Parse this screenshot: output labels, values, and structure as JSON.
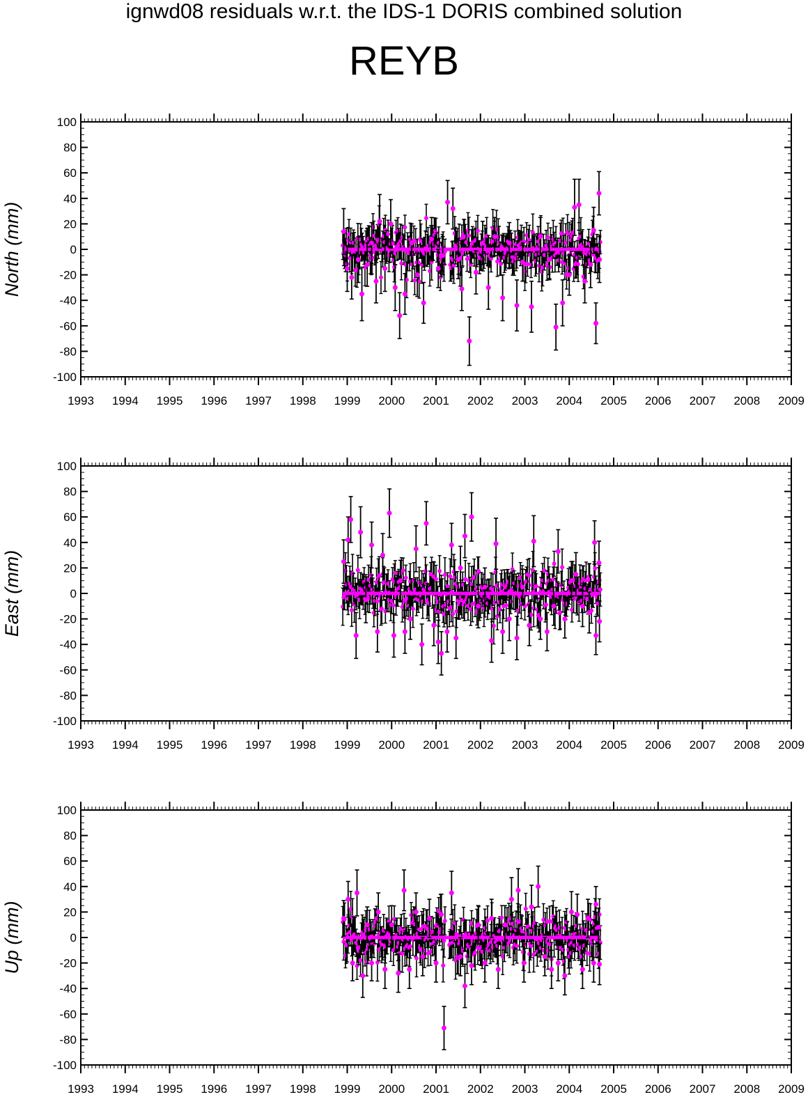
{
  "figure": {
    "suptitle": "ignwd08 residuals w.r.t. the IDS-1 DORIS combined solution",
    "station": "REYB",
    "colors": {
      "point": "#ff00ff",
      "errorbar": "#000000",
      "axis": "#000000"
    }
  },
  "chart_data": [
    {
      "type": "scatter",
      "ylabel": "North (mm)",
      "xlim": [
        1993,
        2009
      ],
      "ylim": [
        -100,
        100
      ],
      "xticks": [
        "1993",
        "1994",
        "1995",
        "1996",
        "1997",
        "1998",
        "1999",
        "2000",
        "2001",
        "2002",
        "2003",
        "2004",
        "2005",
        "2006",
        "2007",
        "2008",
        "2009"
      ],
      "yticks": [
        "100",
        "80",
        "60",
        "40",
        "20",
        "0",
        "-20",
        "-40",
        "-60",
        "-80",
        "-100"
      ],
      "grid": false,
      "points": [
        {
          "x": 1998.92,
          "y": 14,
          "err": 18
        },
        {
          "x": 1999.0,
          "y": -15,
          "err": 18
        },
        {
          "x": 1999.1,
          "y": -22,
          "err": 17
        },
        {
          "x": 1999.25,
          "y": -8,
          "err": 18
        },
        {
          "x": 1999.33,
          "y": -35,
          "err": 21
        },
        {
          "x": 1999.45,
          "y": -12,
          "err": 17
        },
        {
          "x": 1999.55,
          "y": 5,
          "err": 16
        },
        {
          "x": 1999.65,
          "y": -25,
          "err": 17
        },
        {
          "x": 1999.73,
          "y": 22,
          "err": 21
        },
        {
          "x": 1999.85,
          "y": -15,
          "err": 18
        },
        {
          "x": 1999.98,
          "y": 20,
          "err": 19
        },
        {
          "x": 2000.08,
          "y": -30,
          "err": 18
        },
        {
          "x": 2000.18,
          "y": -52,
          "err": 18
        },
        {
          "x": 2000.3,
          "y": -35,
          "err": 16
        },
        {
          "x": 2000.45,
          "y": 5,
          "err": 15
        },
        {
          "x": 2000.58,
          "y": -20,
          "err": 17
        },
        {
          "x": 2000.72,
          "y": -42,
          "err": 16
        },
        {
          "x": 2000.9,
          "y": 8,
          "err": 17
        },
        {
          "x": 2001.05,
          "y": -15,
          "err": 15
        },
        {
          "x": 2001.15,
          "y": -5,
          "err": 15
        },
        {
          "x": 2001.26,
          "y": 37,
          "err": 17
        },
        {
          "x": 2001.38,
          "y": 32,
          "err": 16
        },
        {
          "x": 2001.5,
          "y": -8,
          "err": 15
        },
        {
          "x": 2001.58,
          "y": -31,
          "err": 17
        },
        {
          "x": 2001.75,
          "y": -72,
          "err": 19
        },
        {
          "x": 2001.9,
          "y": -18,
          "err": 17
        },
        {
          "x": 2002.05,
          "y": 5,
          "err": 17
        },
        {
          "x": 2002.18,
          "y": -30,
          "err": 17
        },
        {
          "x": 2002.32,
          "y": 10,
          "err": 15
        },
        {
          "x": 2002.5,
          "y": -38,
          "err": 18
        },
        {
          "x": 2002.65,
          "y": 5,
          "err": 16
        },
        {
          "x": 2002.82,
          "y": -44,
          "err": 20
        },
        {
          "x": 2002.95,
          "y": -10,
          "err": 15
        },
        {
          "x": 2003.15,
          "y": -45,
          "err": 20
        },
        {
          "x": 2003.35,
          "y": 10,
          "err": 15
        },
        {
          "x": 2003.55,
          "y": -8,
          "err": 15
        },
        {
          "x": 2003.7,
          "y": -61,
          "err": 18
        },
        {
          "x": 2003.85,
          "y": -42,
          "err": 18
        },
        {
          "x": 2004.0,
          "y": -20,
          "err": 16
        },
        {
          "x": 2004.12,
          "y": 33,
          "err": 22
        },
        {
          "x": 2004.22,
          "y": 35,
          "err": 20
        },
        {
          "x": 2004.35,
          "y": -25,
          "err": 17
        },
        {
          "x": 2004.48,
          "y": -12,
          "err": 18
        },
        {
          "x": 2004.55,
          "y": 15,
          "err": 18
        },
        {
          "x": 2004.6,
          "y": -58,
          "err": 16
        },
        {
          "x": 2004.67,
          "y": 44,
          "err": 17
        },
        {
          "x": 2004.68,
          "y": -8,
          "err": 18
        }
      ],
      "zero_line": {
        "x_start": 1998.9,
        "x_end": 2004.7,
        "y": 0
      }
    },
    {
      "type": "scatter",
      "ylabel": "East (mm)",
      "xlim": [
        1993,
        2009
      ],
      "ylim": [
        -100,
        100
      ],
      "xticks": [
        "1993",
        "1994",
        "1995",
        "1996",
        "1997",
        "1998",
        "1999",
        "2000",
        "2001",
        "2002",
        "2003",
        "2004",
        "2005",
        "2006",
        "2007",
        "2008",
        "2009"
      ],
      "yticks": [
        "100",
        "80",
        "60",
        "40",
        "20",
        "0",
        "-20",
        "-40",
        "-60",
        "-80",
        "-100"
      ],
      "grid": false,
      "points": [
        {
          "x": 1998.92,
          "y": 25,
          "err": 17
        },
        {
          "x": 1999.02,
          "y": 42,
          "err": 18
        },
        {
          "x": 1999.08,
          "y": 58,
          "err": 18
        },
        {
          "x": 1999.2,
          "y": -33,
          "err": 18
        },
        {
          "x": 1999.3,
          "y": 48,
          "err": 20
        },
        {
          "x": 1999.42,
          "y": -5,
          "err": 18
        },
        {
          "x": 1999.55,
          "y": 38,
          "err": 18
        },
        {
          "x": 1999.68,
          "y": -30,
          "err": 16
        },
        {
          "x": 1999.8,
          "y": 30,
          "err": 17
        },
        {
          "x": 1999.95,
          "y": 63,
          "err": 19
        },
        {
          "x": 2000.05,
          "y": -33,
          "err": 17
        },
        {
          "x": 2000.2,
          "y": 10,
          "err": 16
        },
        {
          "x": 2000.3,
          "y": -30,
          "err": 17
        },
        {
          "x": 2000.42,
          "y": -20,
          "err": 16
        },
        {
          "x": 2000.55,
          "y": 35,
          "err": 18
        },
        {
          "x": 2000.68,
          "y": -40,
          "err": 16
        },
        {
          "x": 2000.78,
          "y": 55,
          "err": 17
        },
        {
          "x": 2000.95,
          "y": -25,
          "err": 16
        },
        {
          "x": 2001.05,
          "y": -38,
          "err": 17
        },
        {
          "x": 2001.12,
          "y": -47,
          "err": 17
        },
        {
          "x": 2001.25,
          "y": -30,
          "err": 16
        },
        {
          "x": 2001.35,
          "y": 38,
          "err": 17
        },
        {
          "x": 2001.45,
          "y": -35,
          "err": 16
        },
        {
          "x": 2001.55,
          "y": 20,
          "err": 17
        },
        {
          "x": 2001.65,
          "y": 45,
          "err": 17
        },
        {
          "x": 2001.8,
          "y": 60,
          "err": 19
        },
        {
          "x": 2001.95,
          "y": -10,
          "err": 17
        },
        {
          "x": 2002.1,
          "y": 5,
          "err": 15
        },
        {
          "x": 2002.25,
          "y": -37,
          "err": 17
        },
        {
          "x": 2002.35,
          "y": 39,
          "err": 20
        },
        {
          "x": 2002.5,
          "y": -30,
          "err": 17
        },
        {
          "x": 2002.65,
          "y": -20,
          "err": 17
        },
        {
          "x": 2002.82,
          "y": -35,
          "err": 17
        },
        {
          "x": 2002.95,
          "y": 5,
          "err": 14
        },
        {
          "x": 2003.1,
          "y": -25,
          "err": 16
        },
        {
          "x": 2003.2,
          "y": 41,
          "err": 20
        },
        {
          "x": 2003.35,
          "y": -20,
          "err": 16
        },
        {
          "x": 2003.5,
          "y": -30,
          "err": 15
        },
        {
          "x": 2003.65,
          "y": -10,
          "err": 15
        },
        {
          "x": 2003.75,
          "y": 33,
          "err": 17
        },
        {
          "x": 2003.9,
          "y": -20,
          "err": 15
        },
        {
          "x": 2004.05,
          "y": 10,
          "err": 15
        },
        {
          "x": 2004.15,
          "y": 15,
          "err": 17
        },
        {
          "x": 2004.3,
          "y": -10,
          "err": 16
        },
        {
          "x": 2004.45,
          "y": -15,
          "err": 16
        },
        {
          "x": 2004.57,
          "y": 40,
          "err": 17
        },
        {
          "x": 2004.6,
          "y": -33,
          "err": 15
        },
        {
          "x": 2004.67,
          "y": 24,
          "err": 17
        },
        {
          "x": 2004.68,
          "y": -22,
          "err": 16
        }
      ],
      "zero_line": {
        "x_start": 1998.9,
        "x_end": 2004.7,
        "y": 0
      }
    },
    {
      "type": "scatter",
      "ylabel": "Up (mm)",
      "xlim": [
        1993,
        2009
      ],
      "ylim": [
        -100,
        100
      ],
      "xticks": [
        "1993",
        "1994",
        "1995",
        "1996",
        "1997",
        "1998",
        "1999",
        "2000",
        "2001",
        "2002",
        "2003",
        "2004",
        "2005",
        "2006",
        "2007",
        "2008",
        "2009"
      ],
      "yticks": [
        "100",
        "80",
        "60",
        "40",
        "20",
        "0",
        "-20",
        "-40",
        "-60",
        "-80",
        "-100"
      ],
      "grid": false,
      "points": [
        {
          "x": 1998.92,
          "y": 15,
          "err": 14
        },
        {
          "x": 1999.02,
          "y": 30,
          "err": 14
        },
        {
          "x": 1999.12,
          "y": -20,
          "err": 14
        },
        {
          "x": 1999.22,
          "y": 35,
          "err": 18
        },
        {
          "x": 1999.35,
          "y": -30,
          "err": 17
        },
        {
          "x": 1999.45,
          "y": 10,
          "err": 14
        },
        {
          "x": 1999.55,
          "y": -20,
          "err": 14
        },
        {
          "x": 1999.7,
          "y": 20,
          "err": 15
        },
        {
          "x": 1999.85,
          "y": -25,
          "err": 15
        },
        {
          "x": 2000.0,
          "y": 10,
          "err": 15
        },
        {
          "x": 2000.15,
          "y": -28,
          "err": 15
        },
        {
          "x": 2000.28,
          "y": 37,
          "err": 16
        },
        {
          "x": 2000.4,
          "y": -25,
          "err": 15
        },
        {
          "x": 2000.55,
          "y": 20,
          "err": 15
        },
        {
          "x": 2000.7,
          "y": -15,
          "err": 15
        },
        {
          "x": 2000.85,
          "y": 15,
          "err": 15
        },
        {
          "x": 2001.0,
          "y": -20,
          "err": 15
        },
        {
          "x": 2001.12,
          "y": 18,
          "err": 16
        },
        {
          "x": 2001.18,
          "y": -71,
          "err": 17
        },
        {
          "x": 2001.35,
          "y": 35,
          "err": 17
        },
        {
          "x": 2001.55,
          "y": -15,
          "err": 15
        },
        {
          "x": 2001.65,
          "y": -38,
          "err": 17
        },
        {
          "x": 2001.8,
          "y": -22,
          "err": 15
        },
        {
          "x": 2001.95,
          "y": 10,
          "err": 15
        },
        {
          "x": 2002.1,
          "y": -20,
          "err": 15
        },
        {
          "x": 2002.25,
          "y": 15,
          "err": 15
        },
        {
          "x": 2002.4,
          "y": -25,
          "err": 15
        },
        {
          "x": 2002.55,
          "y": 10,
          "err": 15
        },
        {
          "x": 2002.7,
          "y": 30,
          "err": 17
        },
        {
          "x": 2002.85,
          "y": 37,
          "err": 17
        },
        {
          "x": 2002.98,
          "y": -20,
          "err": 15
        },
        {
          "x": 2003.15,
          "y": 24,
          "err": 17
        },
        {
          "x": 2003.3,
          "y": 40,
          "err": 16
        },
        {
          "x": 2003.45,
          "y": -15,
          "err": 15
        },
        {
          "x": 2003.6,
          "y": -25,
          "err": 15
        },
        {
          "x": 2003.75,
          "y": -20,
          "err": 14
        },
        {
          "x": 2003.9,
          "y": -30,
          "err": 15
        },
        {
          "x": 2004.05,
          "y": 20,
          "err": 16
        },
        {
          "x": 2004.18,
          "y": 18,
          "err": 16
        },
        {
          "x": 2004.3,
          "y": -25,
          "err": 15
        },
        {
          "x": 2004.42,
          "y": 15,
          "err": 15
        },
        {
          "x": 2004.55,
          "y": -20,
          "err": 15
        },
        {
          "x": 2004.6,
          "y": 26,
          "err": 14
        },
        {
          "x": 2004.68,
          "y": -21,
          "err": 16
        },
        {
          "x": 2004.66,
          "y": 8,
          "err": 15
        }
      ],
      "zero_line": {
        "x_start": 1998.9,
        "x_end": 2004.7,
        "y": 0
      }
    }
  ]
}
